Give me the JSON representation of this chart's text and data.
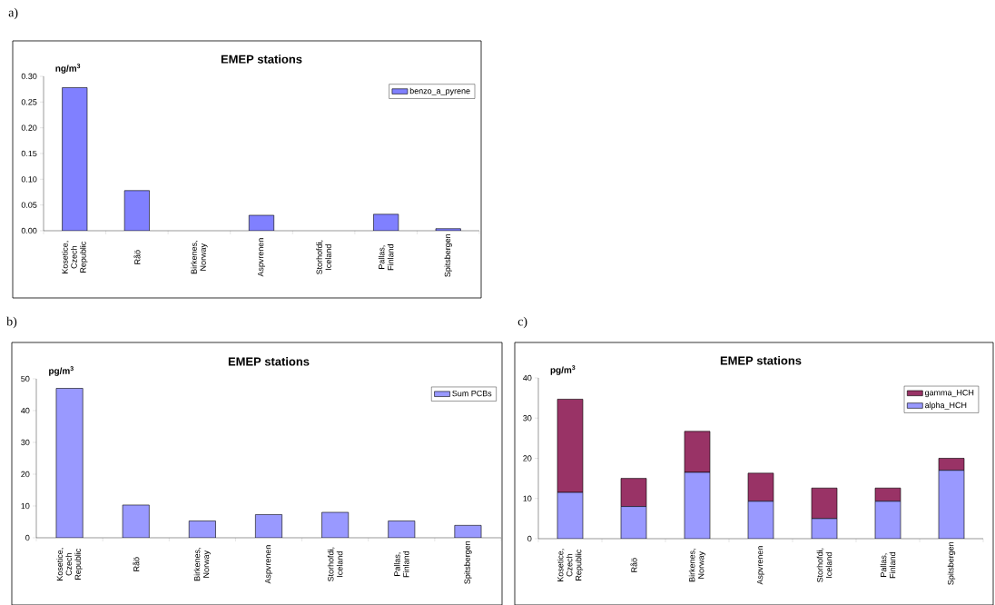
{
  "chart_data": [
    {
      "type": "bar",
      "title": "EMEP stations",
      "ylabel": "ng/m$^{3}$",
      "annotations": [
        "a)"
      ],
      "categories": [
        "Kosetice, Czech Republic",
        "Råö",
        "Birkenes, Norway",
        "Aspvrenen",
        "Storhofdi, Iceland",
        "Pallas, Finland",
        "Spitsbergen"
      ],
      "series": [
        {
          "name": "benzo_a_pyrene",
          "color": "#8080ff",
          "values": [
            0.278,
            0.078,
            null,
            0.03,
            null,
            0.032,
            0.004
          ]
        }
      ],
      "ylim": [
        0,
        0.3
      ],
      "yticks": [
        {
          "value": 0,
          "label": "0.00"
        },
        {
          "value": 0.05,
          "label": "0.05"
        },
        {
          "value": 0.1,
          "label": "0.10"
        },
        {
          "value": 0.15,
          "label": "0.15"
        },
        {
          "value": 0.2,
          "label": "0.20"
        },
        {
          "value": 0.25,
          "label": "0.25"
        },
        {
          "value": 0.3,
          "label": "0.30"
        }
      ],
      "legend": "top right"
    },
    {
      "type": "bar",
      "title": "EMEP stations",
      "ylabel": "pg/m$^{3}$",
      "annotations": [
        "b)"
      ],
      "categories": [
        "Kosetice, Czech Republic",
        "Råö",
        "Birkenes, Norway",
        "Aspvrenen",
        "Storhofdi, Iceland",
        "Pallas, Finland",
        "Spitsbergen"
      ],
      "series": [
        {
          "name": "Sum PCBs",
          "color": "#9999ff",
          "values": [
            47,
            10.3,
            5.3,
            7.3,
            8.0,
            5.3,
            3.9
          ]
        }
      ],
      "ylim": [
        0,
        50
      ],
      "yticks": [
        0,
        10,
        20,
        30,
        40,
        50
      ],
      "legend": "top right"
    },
    {
      "type": "bar",
      "title": "EMEP stations",
      "ylabel": "pg/m$^{3}$",
      "annotations": [
        "c)"
      ],
      "stacked": true,
      "categories": [
        "Kosetice, Czech Republic",
        "Råö",
        "Birkenes, Norway",
        "Aspvrenen",
        "Storhofdi, Iceland",
        "Pallas, Finland",
        "Spitsbergen"
      ],
      "series": [
        {
          "name": "alpha_HCH",
          "color": "#9999ff",
          "values": [
            11.5,
            8.0,
            16.5,
            9.3,
            5.0,
            9.3,
            17.0
          ]
        },
        {
          "name": "gamma_HCH",
          "color": "#993366",
          "values": [
            23.2,
            7.0,
            10.2,
            7.0,
            7.6,
            3.3,
            3.0
          ]
        }
      ],
      "ylim": [
        0,
        40
      ],
      "yticks": [
        0,
        10,
        20,
        30,
        40
      ],
      "legend": "top right"
    }
  ]
}
